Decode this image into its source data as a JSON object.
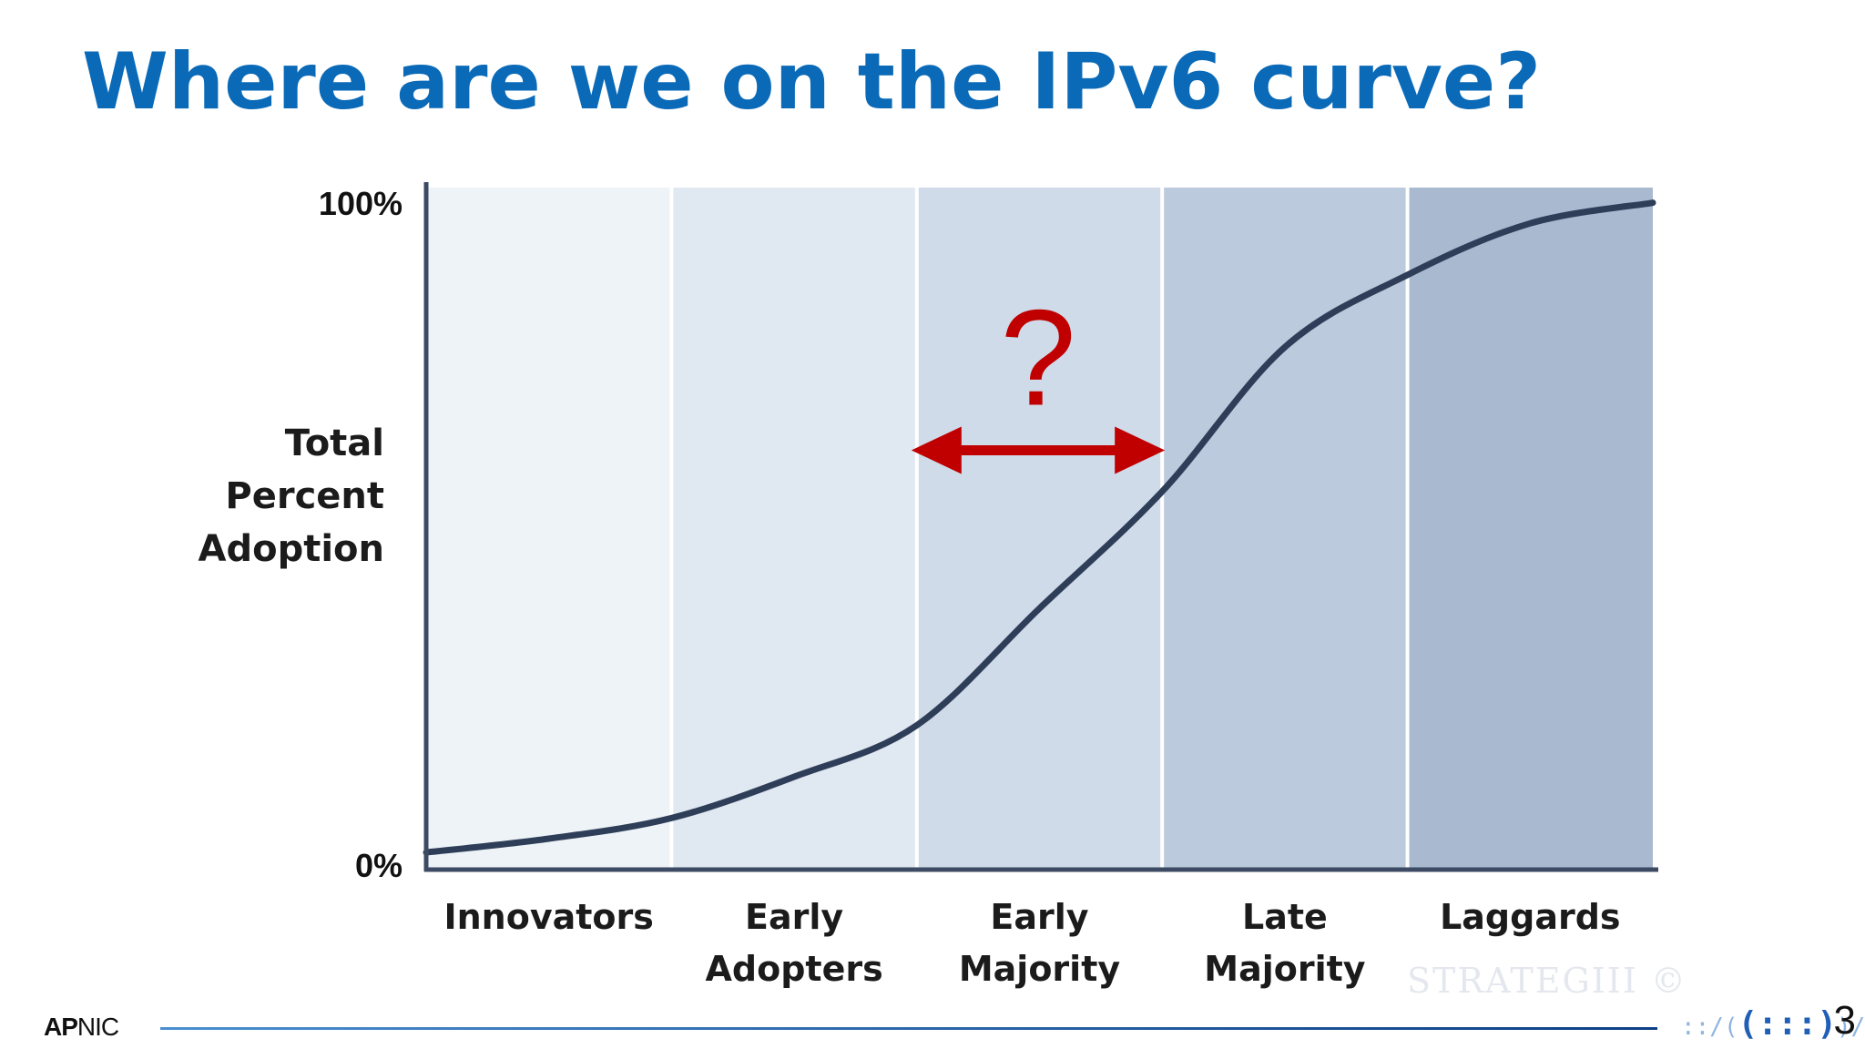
{
  "slide": {
    "title": "Where are we on the IPv6 curve?",
    "page_number": "3",
    "footer_logo_bold": "AP",
    "footer_logo_rest": "NIC",
    "ip_logo_left": "::/(",
    "ip_logo_mid": "(:::)",
    "ip_logo_right": ")/:::"
  },
  "chart_data": {
    "type": "line",
    "title": "",
    "ylabel": [
      "Total",
      "Percent",
      "Adoption"
    ],
    "y_tick_labels": [
      "100%",
      "0%"
    ],
    "ylim": [
      0,
      100
    ],
    "categories": [
      [
        "Innovators"
      ],
      [
        "Early",
        "Adopters"
      ],
      [
        "Early",
        "Majority"
      ],
      [
        "Late",
        "Majority"
      ],
      [
        "Laggards"
      ]
    ],
    "band_colors": [
      "#eef3f8",
      "#e0e8f1",
      "#cfdbe9",
      "#bccadd",
      "#a9b9d0"
    ],
    "series": [
      {
        "x": [
          0,
          0.5,
          1.0,
          1.5,
          2.0,
          2.5,
          3.0,
          3.5,
          4.0,
          4.5,
          5.0
        ],
        "values": [
          2.5,
          4.5,
          7.5,
          13.5,
          21,
          38,
          55,
          76,
          86.5,
          94,
          97
        ],
        "color": "#2f3e58"
      }
    ],
    "annotation": {
      "text": "?",
      "arrow_span": [
        2.0,
        3.0
      ],
      "arrow_y": 61,
      "color": "#c00000"
    },
    "watermark": "STRATEGIII ©",
    "grid": false
  }
}
